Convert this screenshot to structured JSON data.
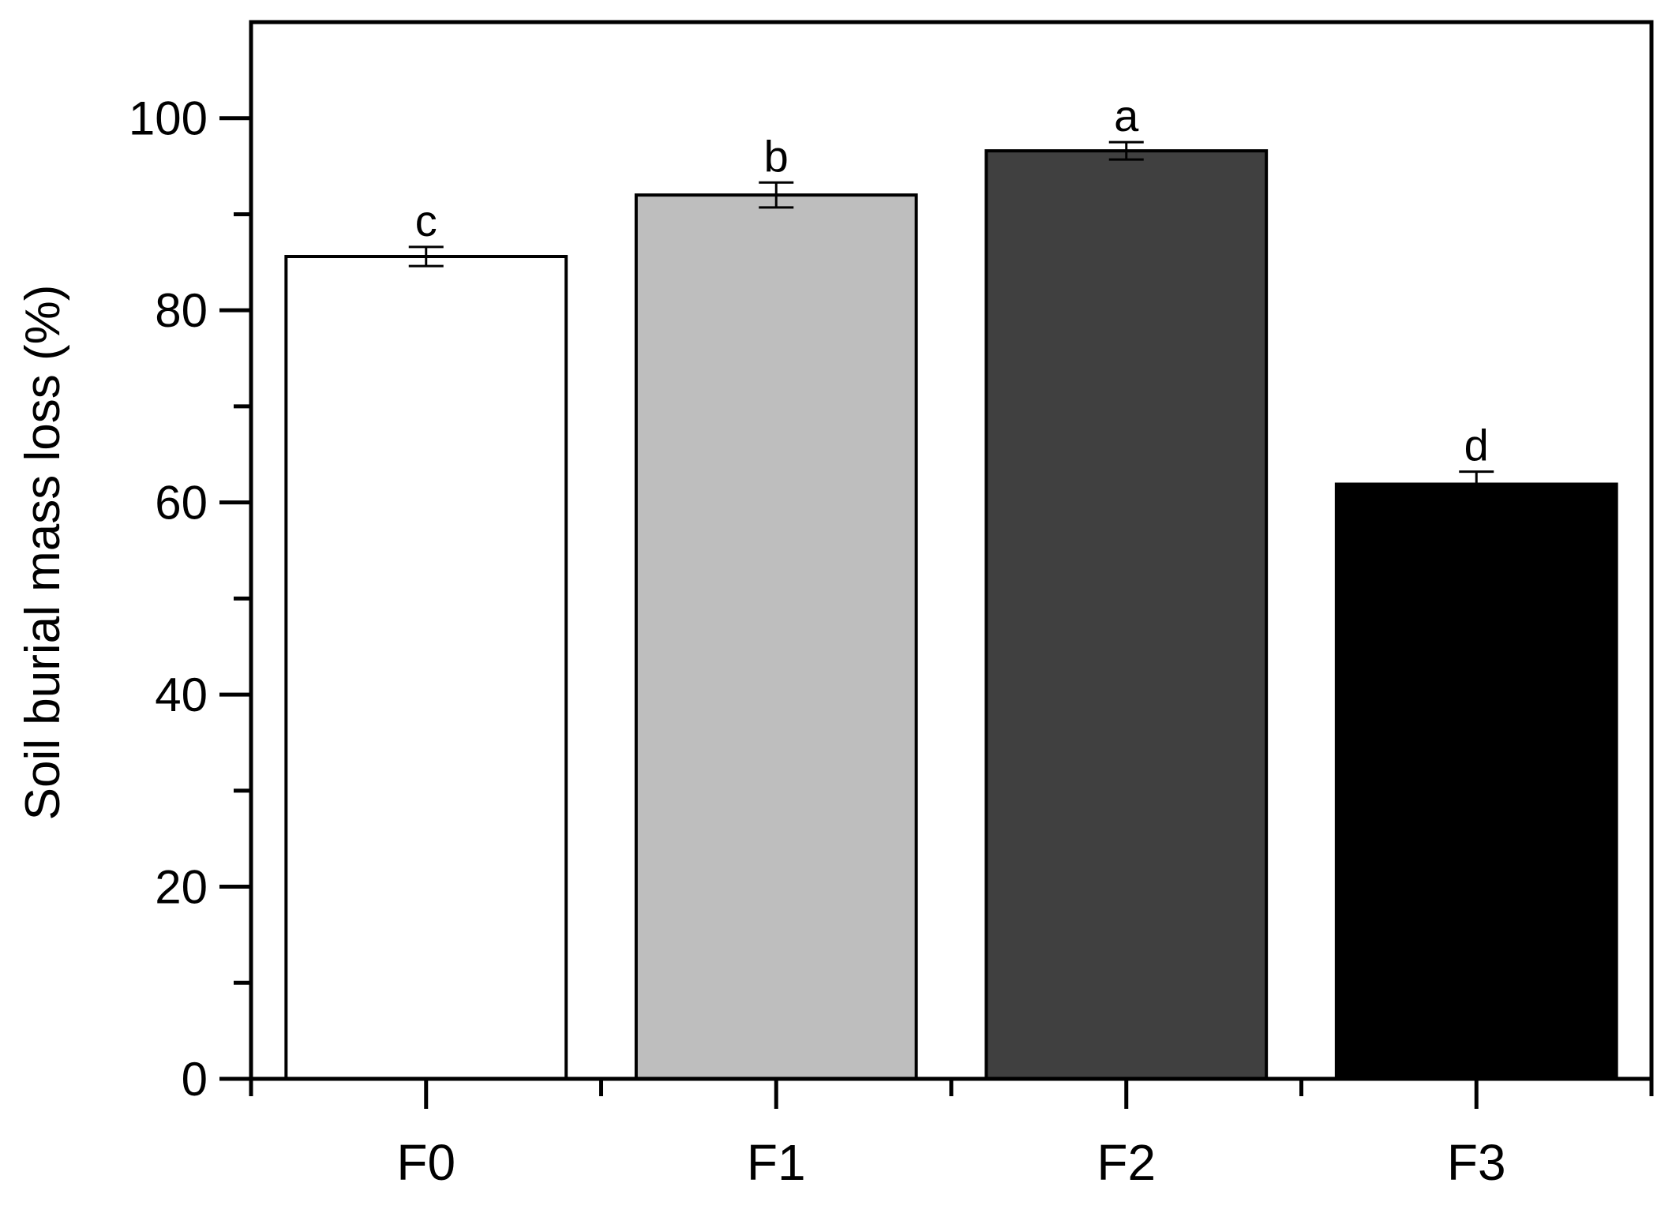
{
  "chart_data": {
    "type": "bar",
    "categories": [
      "F0",
      "F1",
      "F2",
      "F3"
    ],
    "values": [
      85.6,
      92.0,
      96.6,
      61.9
    ],
    "errors": [
      1.0,
      1.3,
      0.9,
      1.3
    ],
    "significance": [
      "c",
      "b",
      "a",
      "d"
    ],
    "bar_colors": [
      "#ffffff",
      "#bebebe",
      "#404040",
      "#000000"
    ],
    "ylabel": "Soil burial mass loss (%)",
    "xlabel": "",
    "ylim": [
      0,
      110
    ],
    "yticks": [
      0,
      20,
      40,
      60,
      80,
      100
    ],
    "ytick_labels": [
      "0",
      "20",
      "40",
      "60",
      "80",
      "100"
    ],
    "grid": false,
    "legend": "none"
  }
}
